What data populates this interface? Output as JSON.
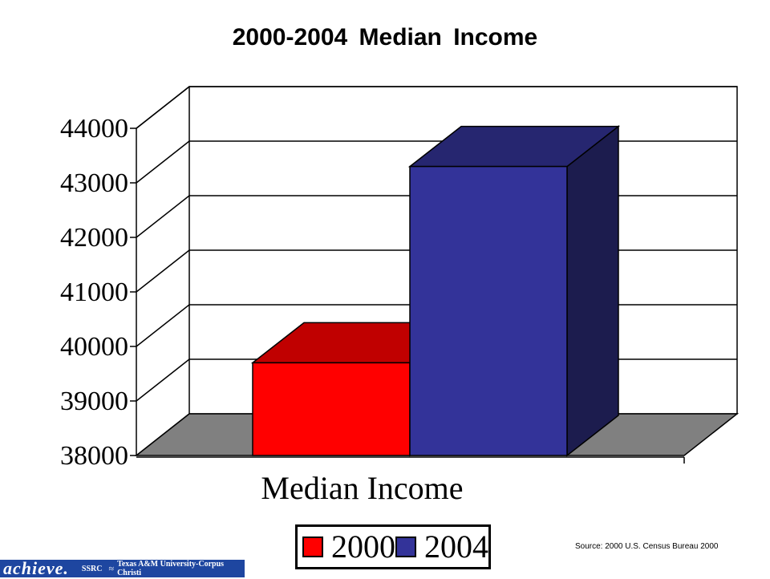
{
  "chart_data": {
    "type": "bar",
    "title": "2000-2004  Median  Income",
    "categories": [
      "Median Income"
    ],
    "xlabel": "Median Income",
    "ylabel": "",
    "ylim": [
      38000,
      44000
    ],
    "yticks": [
      38000,
      39000,
      40000,
      41000,
      42000,
      43000,
      44000
    ],
    "grid": true,
    "legend_position": "bottom",
    "series": [
      {
        "name": "2000",
        "values": [
          39700
        ],
        "color": "#ff0000",
        "top_color": "#c00000",
        "side_color": "#900000"
      },
      {
        "name": "2004",
        "values": [
          43300
        ],
        "color": "#333399",
        "top_color": "#262670",
        "side_color": "#1c1c4e"
      }
    ]
  },
  "source_text": "Source:  2000 U.S. Census Bureau 2000",
  "footer": {
    "logo": "achieve.",
    "ssrc": "SSRC",
    "wave_icon": "wave-icon",
    "university": "Texas A&M University-Corpus Christi",
    "color": "#1e46a0"
  }
}
